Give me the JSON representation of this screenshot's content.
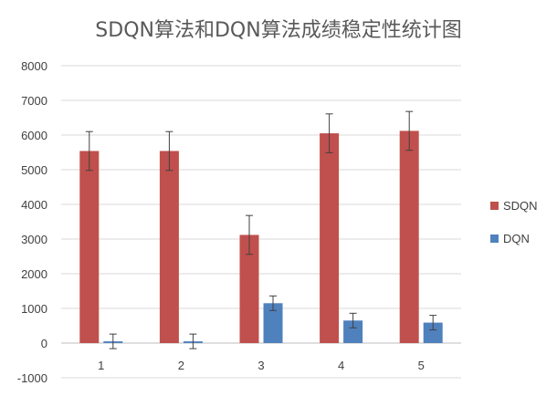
{
  "chart_data": {
    "type": "bar",
    "title": "SDQN算法和DQN算法成绩稳定性统计图",
    "xlabel": "",
    "ylabel": "",
    "categories": [
      "1",
      "2",
      "3",
      "4",
      "5"
    ],
    "ylim": [
      -1000,
      8000
    ],
    "yticks": [
      -1000,
      0,
      1000,
      2000,
      3000,
      4000,
      5000,
      6000,
      7000,
      8000
    ],
    "grid": true,
    "legend_position": "right",
    "series": [
      {
        "name": "SDQN",
        "color": "#c0504d",
        "values": [
          5540,
          5540,
          3120,
          6050,
          6120
        ],
        "error": [
          560,
          560,
          560,
          560,
          560
        ]
      },
      {
        "name": "DQN",
        "color": "#4f81bd",
        "values": [
          50,
          50,
          1150,
          650,
          590
        ],
        "error": [
          210,
          210,
          210,
          210,
          210
        ]
      }
    ]
  }
}
